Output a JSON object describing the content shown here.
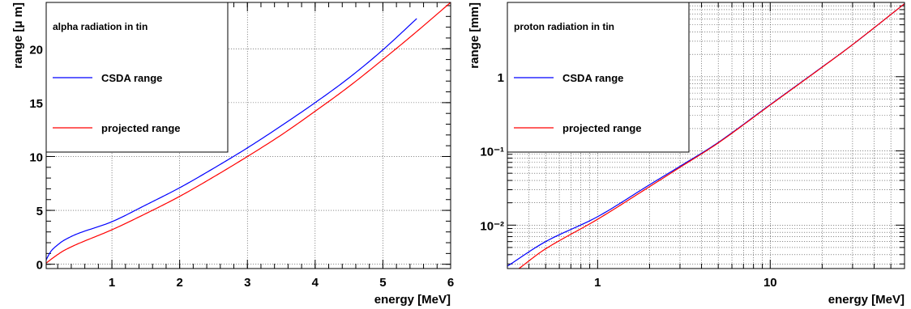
{
  "chart_data": [
    {
      "type": "line",
      "title": "",
      "xlabel": "energy [MeV]",
      "ylabel": "range [μ m]",
      "xscale": "linear",
      "yscale": "linear",
      "xlim": [
        0.03,
        6
      ],
      "ylim": [
        -0.4,
        24.3
      ],
      "xticks": [
        1,
        2,
        3,
        4,
        5,
        6
      ],
      "xtick_labels": [
        "1",
        "2",
        "3",
        "4",
        "5",
        "6"
      ],
      "yticks": [
        0,
        5,
        10,
        15,
        20
      ],
      "ytick_labels": [
        "0",
        "5",
        "10",
        "15",
        "20"
      ],
      "grid": true,
      "legend_position": "top-left",
      "legend": {
        "title": "alpha radiation in tin",
        "entries": [
          "CSDA range",
          "projected range"
        ]
      },
      "series": [
        {
          "name": "CSDA range",
          "color": "#0000ff",
          "x": [
            0.02,
            0.1,
            0.2,
            0.3,
            0.5,
            1.0,
            1.5,
            2.0,
            2.5,
            3.0,
            3.5,
            4.0,
            4.5,
            5.0,
            5.5
          ],
          "y": [
            0.3,
            1.2,
            1.8,
            2.25,
            2.85,
            3.95,
            5.5,
            7.1,
            8.9,
            10.8,
            12.85,
            15.0,
            17.3,
            19.9,
            22.8
          ]
        },
        {
          "name": "projected range",
          "color": "#ff0000",
          "x": [
            0.02,
            0.1,
            0.2,
            0.3,
            0.5,
            1.0,
            1.5,
            2.0,
            2.5,
            3.0,
            3.5,
            4.0,
            4.5,
            5.0,
            5.5,
            6.0
          ],
          "y": [
            0.05,
            0.45,
            0.9,
            1.3,
            1.9,
            3.2,
            4.7,
            6.3,
            8.1,
            10.0,
            12.0,
            14.2,
            16.5,
            19.0,
            21.6,
            24.3
          ]
        }
      ]
    },
    {
      "type": "line",
      "title": "",
      "xlabel": "energy [MeV]",
      "ylabel": "range [mm]",
      "xscale": "log",
      "yscale": "log",
      "xlim": [
        0.3,
        60
      ],
      "ylim": [
        0.0026,
        10
      ],
      "xticks": [
        1,
        10
      ],
      "xtick_labels": [
        "1",
        "10"
      ],
      "yticks": [
        0.01,
        0.1,
        1
      ],
      "ytick_labels": [
        "10⁻²",
        "10⁻¹",
        "1"
      ],
      "grid": true,
      "legend_position": "top-left",
      "legend": {
        "title": "proton radiation in tin",
        "entries": [
          "CSDA range",
          "projected range"
        ]
      },
      "series": [
        {
          "name": "CSDA range",
          "color": "#0000ff",
          "x": [
            0.3,
            0.5,
            1,
            2,
            3,
            5,
            10,
            20,
            30,
            60
          ],
          "y": [
            0.0028,
            0.006,
            0.013,
            0.035,
            0.062,
            0.13,
            0.42,
            1.35,
            2.7,
            9.6
          ]
        },
        {
          "name": "projected range",
          "color": "#ff0000",
          "x": [
            0.35,
            0.5,
            1,
            2,
            3,
            5,
            10,
            20,
            30,
            60
          ],
          "y": [
            0.0026,
            0.0048,
            0.012,
            0.033,
            0.06,
            0.128,
            0.415,
            1.34,
            2.7,
            9.6
          ]
        }
      ]
    }
  ]
}
